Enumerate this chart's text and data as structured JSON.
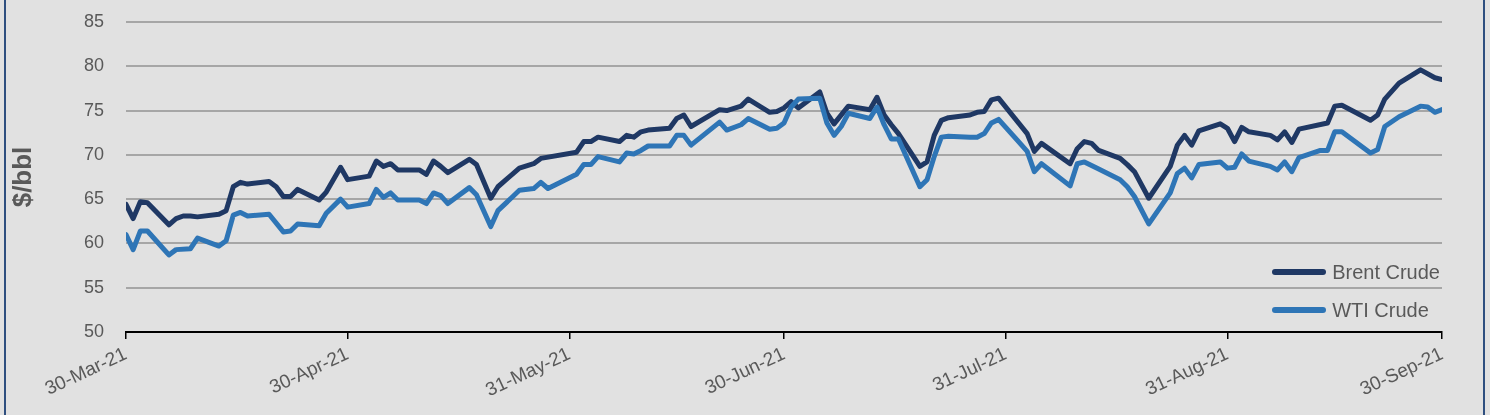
{
  "chart_data": {
    "type": "line",
    "ylabel": "$/bbl",
    "xlim": [
      "2021-03-30",
      "2021-09-30"
    ],
    "xticks": [
      {
        "value": "2021-03-30",
        "label": "30-Mar-21"
      },
      {
        "value": "2021-04-30",
        "label": "30-Apr-21"
      },
      {
        "value": "2021-05-31",
        "label": "31-May-21"
      },
      {
        "value": "2021-06-30",
        "label": "30-Jun-21"
      },
      {
        "value": "2021-07-31",
        "label": "31-Jul-21"
      },
      {
        "value": "2021-08-31",
        "label": "31-Aug-21"
      },
      {
        "value": "2021-09-30",
        "label": "30-Sep-21"
      }
    ],
    "ylim": [
      50,
      85
    ],
    "yticks": [
      50,
      55,
      60,
      65,
      70,
      75,
      80,
      85
    ],
    "grid": "y",
    "legend": "bottom right",
    "series": [
      {
        "name": "Brent Crude",
        "color": "#1f3864",
        "x": [
          "2021-03-30",
          "2021-03-31",
          "2021-04-01",
          "2021-04-02",
          "2021-04-05",
          "2021-04-06",
          "2021-04-07",
          "2021-04-08",
          "2021-04-09",
          "2021-04-12",
          "2021-04-13",
          "2021-04-14",
          "2021-04-15",
          "2021-04-16",
          "2021-04-19",
          "2021-04-20",
          "2021-04-21",
          "2021-04-22",
          "2021-04-23",
          "2021-04-26",
          "2021-04-27",
          "2021-04-29",
          "2021-04-30",
          "2021-05-03",
          "2021-05-04",
          "2021-05-05",
          "2021-05-06",
          "2021-05-07",
          "2021-05-10",
          "2021-05-11",
          "2021-05-12",
          "2021-05-13",
          "2021-05-14",
          "2021-05-17",
          "2021-05-18",
          "2021-05-20",
          "2021-05-21",
          "2021-05-24",
          "2021-05-26",
          "2021-05-27",
          "2021-06-01",
          "2021-06-02",
          "2021-06-03",
          "2021-06-04",
          "2021-06-07",
          "2021-06-08",
          "2021-06-09",
          "2021-06-10",
          "2021-06-11",
          "2021-06-14",
          "2021-06-15",
          "2021-06-16",
          "2021-06-17",
          "2021-06-21",
          "2021-06-22",
          "2021-06-24",
          "2021-06-25",
          "2021-06-28",
          "2021-06-29",
          "2021-06-30",
          "2021-07-01",
          "2021-07-02",
          "2021-07-05",
          "2021-07-06",
          "2021-07-07",
          "2021-07-09",
          "2021-07-12",
          "2021-07-13",
          "2021-07-14",
          "2021-07-15",
          "2021-07-16",
          "2021-07-19",
          "2021-07-20",
          "2021-07-21",
          "2021-07-22",
          "2021-07-23",
          "2021-07-26",
          "2021-07-27",
          "2021-07-28",
          "2021-07-29",
          "2021-07-30",
          "2021-08-03",
          "2021-08-04",
          "2021-08-05",
          "2021-08-09",
          "2021-08-10",
          "2021-08-11",
          "2021-08-12",
          "2021-08-13",
          "2021-08-16",
          "2021-08-17",
          "2021-08-18",
          "2021-08-20",
          "2021-08-23",
          "2021-08-24",
          "2021-08-25",
          "2021-08-26",
          "2021-08-27",
          "2021-08-30",
          "2021-08-31",
          "2021-09-01",
          "2021-09-02",
          "2021-09-03",
          "2021-09-06",
          "2021-09-07",
          "2021-09-08",
          "2021-09-09",
          "2021-09-10",
          "2021-09-14",
          "2021-09-15",
          "2021-09-16",
          "2021-09-20",
          "2021-09-21",
          "2021-09-22",
          "2021-09-24",
          "2021-09-27",
          "2021-09-29",
          "2021-09-30"
        ],
        "values": [
          64.4,
          62.8,
          64.7,
          64.6,
          62.1,
          62.8,
          63.1,
          63.1,
          63.0,
          63.3,
          63.7,
          66.4,
          66.9,
          66.7,
          67.0,
          66.4,
          65.3,
          65.3,
          66.1,
          64.9,
          65.8,
          68.6,
          67.2,
          67.6,
          69.3,
          68.7,
          69.0,
          68.3,
          68.3,
          67.8,
          69.3,
          68.7,
          68.0,
          69.5,
          68.9,
          65.1,
          66.4,
          68.5,
          69.0,
          69.6,
          70.3,
          71.5,
          71.5,
          72.0,
          71.5,
          72.2,
          72.0,
          72.6,
          72.8,
          73.0,
          74.1,
          74.5,
          73.2,
          75.1,
          75.0,
          75.5,
          76.3,
          74.8,
          74.9,
          75.3,
          76.0,
          75.3,
          77.1,
          74.7,
          73.5,
          75.5,
          75.1,
          76.5,
          74.5,
          73.4,
          72.4,
          68.7,
          69.2,
          72.2,
          73.9,
          74.2,
          74.5,
          74.8,
          74.9,
          76.2,
          76.4,
          72.4,
          70.4,
          71.3,
          69.0,
          70.7,
          71.5,
          71.3,
          70.5,
          69.6,
          68.9,
          68.1,
          65.1,
          68.7,
          71.1,
          72.2,
          71.1,
          72.7,
          73.5,
          73.0,
          71.5,
          73.1,
          72.6,
          72.2,
          71.7,
          72.6,
          71.4,
          72.9,
          73.6,
          75.5,
          75.6,
          73.9,
          74.5,
          76.3,
          78.1,
          79.6,
          78.7,
          78.5
        ]
      },
      {
        "name": "WTI Crude",
        "color": "#2e75b6",
        "x": [
          "2021-03-30",
          "2021-03-31",
          "2021-04-01",
          "2021-04-02",
          "2021-04-05",
          "2021-04-06",
          "2021-04-08",
          "2021-04-09",
          "2021-04-12",
          "2021-04-13",
          "2021-04-14",
          "2021-04-15",
          "2021-04-16",
          "2021-04-19",
          "2021-04-21",
          "2021-04-22",
          "2021-04-23",
          "2021-04-26",
          "2021-04-27",
          "2021-04-29",
          "2021-04-30",
          "2021-05-03",
          "2021-05-04",
          "2021-05-05",
          "2021-05-06",
          "2021-05-07",
          "2021-05-10",
          "2021-05-11",
          "2021-05-12",
          "2021-05-13",
          "2021-05-14",
          "2021-05-17",
          "2021-05-18",
          "2021-05-20",
          "2021-05-21",
          "2021-05-24",
          "2021-05-26",
          "2021-05-27",
          "2021-05-28",
          "2021-06-01",
          "2021-06-02",
          "2021-06-03",
          "2021-06-04",
          "2021-06-07",
          "2021-06-08",
          "2021-06-09",
          "2021-06-10",
          "2021-06-11",
          "2021-06-14",
          "2021-06-15",
          "2021-06-16",
          "2021-06-17",
          "2021-06-21",
          "2021-06-22",
          "2021-06-24",
          "2021-06-25",
          "2021-06-28",
          "2021-06-29",
          "2021-06-30",
          "2021-07-01",
          "2021-07-02",
          "2021-07-05",
          "2021-07-06",
          "2021-07-07",
          "2021-07-08",
          "2021-07-09",
          "2021-07-12",
          "2021-07-13",
          "2021-07-14",
          "2021-07-15",
          "2021-07-16",
          "2021-07-19",
          "2021-07-20",
          "2021-07-21",
          "2021-07-22",
          "2021-07-23",
          "2021-07-26",
          "2021-07-27",
          "2021-07-28",
          "2021-07-29",
          "2021-07-30",
          "2021-08-03",
          "2021-08-04",
          "2021-08-05",
          "2021-08-09",
          "2021-08-10",
          "2021-08-11",
          "2021-08-13",
          "2021-08-16",
          "2021-08-17",
          "2021-08-18",
          "2021-08-20",
          "2021-08-23",
          "2021-08-24",
          "2021-08-25",
          "2021-08-26",
          "2021-08-27",
          "2021-08-30",
          "2021-08-31",
          "2021-09-01",
          "2021-09-02",
          "2021-09-03",
          "2021-09-06",
          "2021-09-07",
          "2021-09-08",
          "2021-09-09",
          "2021-09-10",
          "2021-09-13",
          "2021-09-14",
          "2021-09-15",
          "2021-09-16",
          "2021-09-20",
          "2021-09-21",
          "2021-09-22",
          "2021-09-24",
          "2021-09-27",
          "2021-09-28",
          "2021-09-29",
          "2021-09-30"
        ],
        "values": [
          61.0,
          59.3,
          61.4,
          61.4,
          58.7,
          59.3,
          59.4,
          60.6,
          59.7,
          60.3,
          63.2,
          63.5,
          63.1,
          63.3,
          61.3,
          61.4,
          62.2,
          62.0,
          63.4,
          65.0,
          64.1,
          64.5,
          66.1,
          65.2,
          65.7,
          64.9,
          64.9,
          64.5,
          65.7,
          65.4,
          64.5,
          66.3,
          65.5,
          61.9,
          63.7,
          66.0,
          66.2,
          66.9,
          66.2,
          67.8,
          68.9,
          68.9,
          69.8,
          69.2,
          70.2,
          70.1,
          70.5,
          71.0,
          71.0,
          72.2,
          72.2,
          71.1,
          73.7,
          72.8,
          73.4,
          74.1,
          72.9,
          73.0,
          73.6,
          75.4,
          76.3,
          76.4,
          73.6,
          72.2,
          73.2,
          74.7,
          74.1,
          75.4,
          73.4,
          71.8,
          71.8,
          66.4,
          67.2,
          69.8,
          72.0,
          72.1,
          72.0,
          72.0,
          72.4,
          73.6,
          74.0,
          70.4,
          68.1,
          69.0,
          66.5,
          69.0,
          69.2,
          68.4,
          67.2,
          66.4,
          65.3,
          62.2,
          65.7,
          67.9,
          68.5,
          67.4,
          68.9,
          69.2,
          68.5,
          68.6,
          70.1,
          69.3,
          68.7,
          68.3,
          69.2,
          68.1,
          69.7,
          70.5,
          70.5,
          72.6,
          72.6,
          70.2,
          70.6,
          73.2,
          74.3,
          75.5,
          75.4,
          74.8,
          75.1
        ]
      }
    ]
  }
}
